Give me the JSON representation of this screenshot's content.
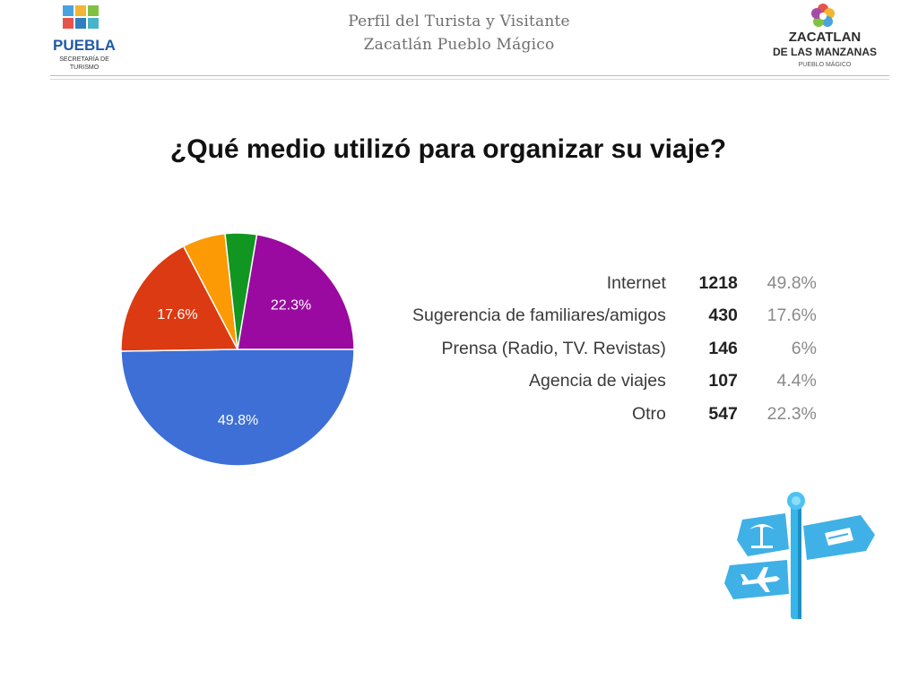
{
  "header": {
    "line1": "Perfil del Turista y Visitante",
    "line2": "Zacatlán Pueblo Mágico"
  },
  "logo_left": {
    "name": "PUEBLA",
    "sub1": "SECRETARÍA DE",
    "sub2": "TURISMO"
  },
  "logo_right": {
    "line1": "ZACATLAN",
    "line2": "DE LAS MANZANAS",
    "line3": "PUEBLO MÁGICO"
  },
  "title": "¿Qué medio utilizó para organizar su viaje?",
  "legend": [
    {
      "label": "Internet",
      "count": "1218",
      "percent": "49.8%"
    },
    {
      "label": "Sugerencia de familiares/amigos",
      "count": "430",
      "percent": "17.6%"
    },
    {
      "label": "Prensa (Radio, TV. Revistas)",
      "count": "146",
      "percent": "6%"
    },
    {
      "label": "Agencia de viajes",
      "count": "107",
      "percent": "4.4%"
    },
    {
      "label": "Otro",
      "count": "547",
      "percent": "22.3%"
    }
  ],
  "chart_data": {
    "type": "pie",
    "categories": [
      "Internet",
      "Sugerencia de familiares/amigos",
      "Prensa (Radio, TV. Revistas)",
      "Agencia de viajes",
      "Otro"
    ],
    "values": [
      1218,
      430,
      146,
      107,
      547
    ],
    "percent_labels": [
      "49.8%",
      "17.6%",
      "",
      "",
      "22.3%"
    ],
    "colors": [
      "#3d6fd6",
      "#dc3a12",
      "#fb9a05",
      "#129622",
      "#9a0aa0"
    ],
    "start_angle_deg": 90,
    "direction": "clockwise"
  }
}
